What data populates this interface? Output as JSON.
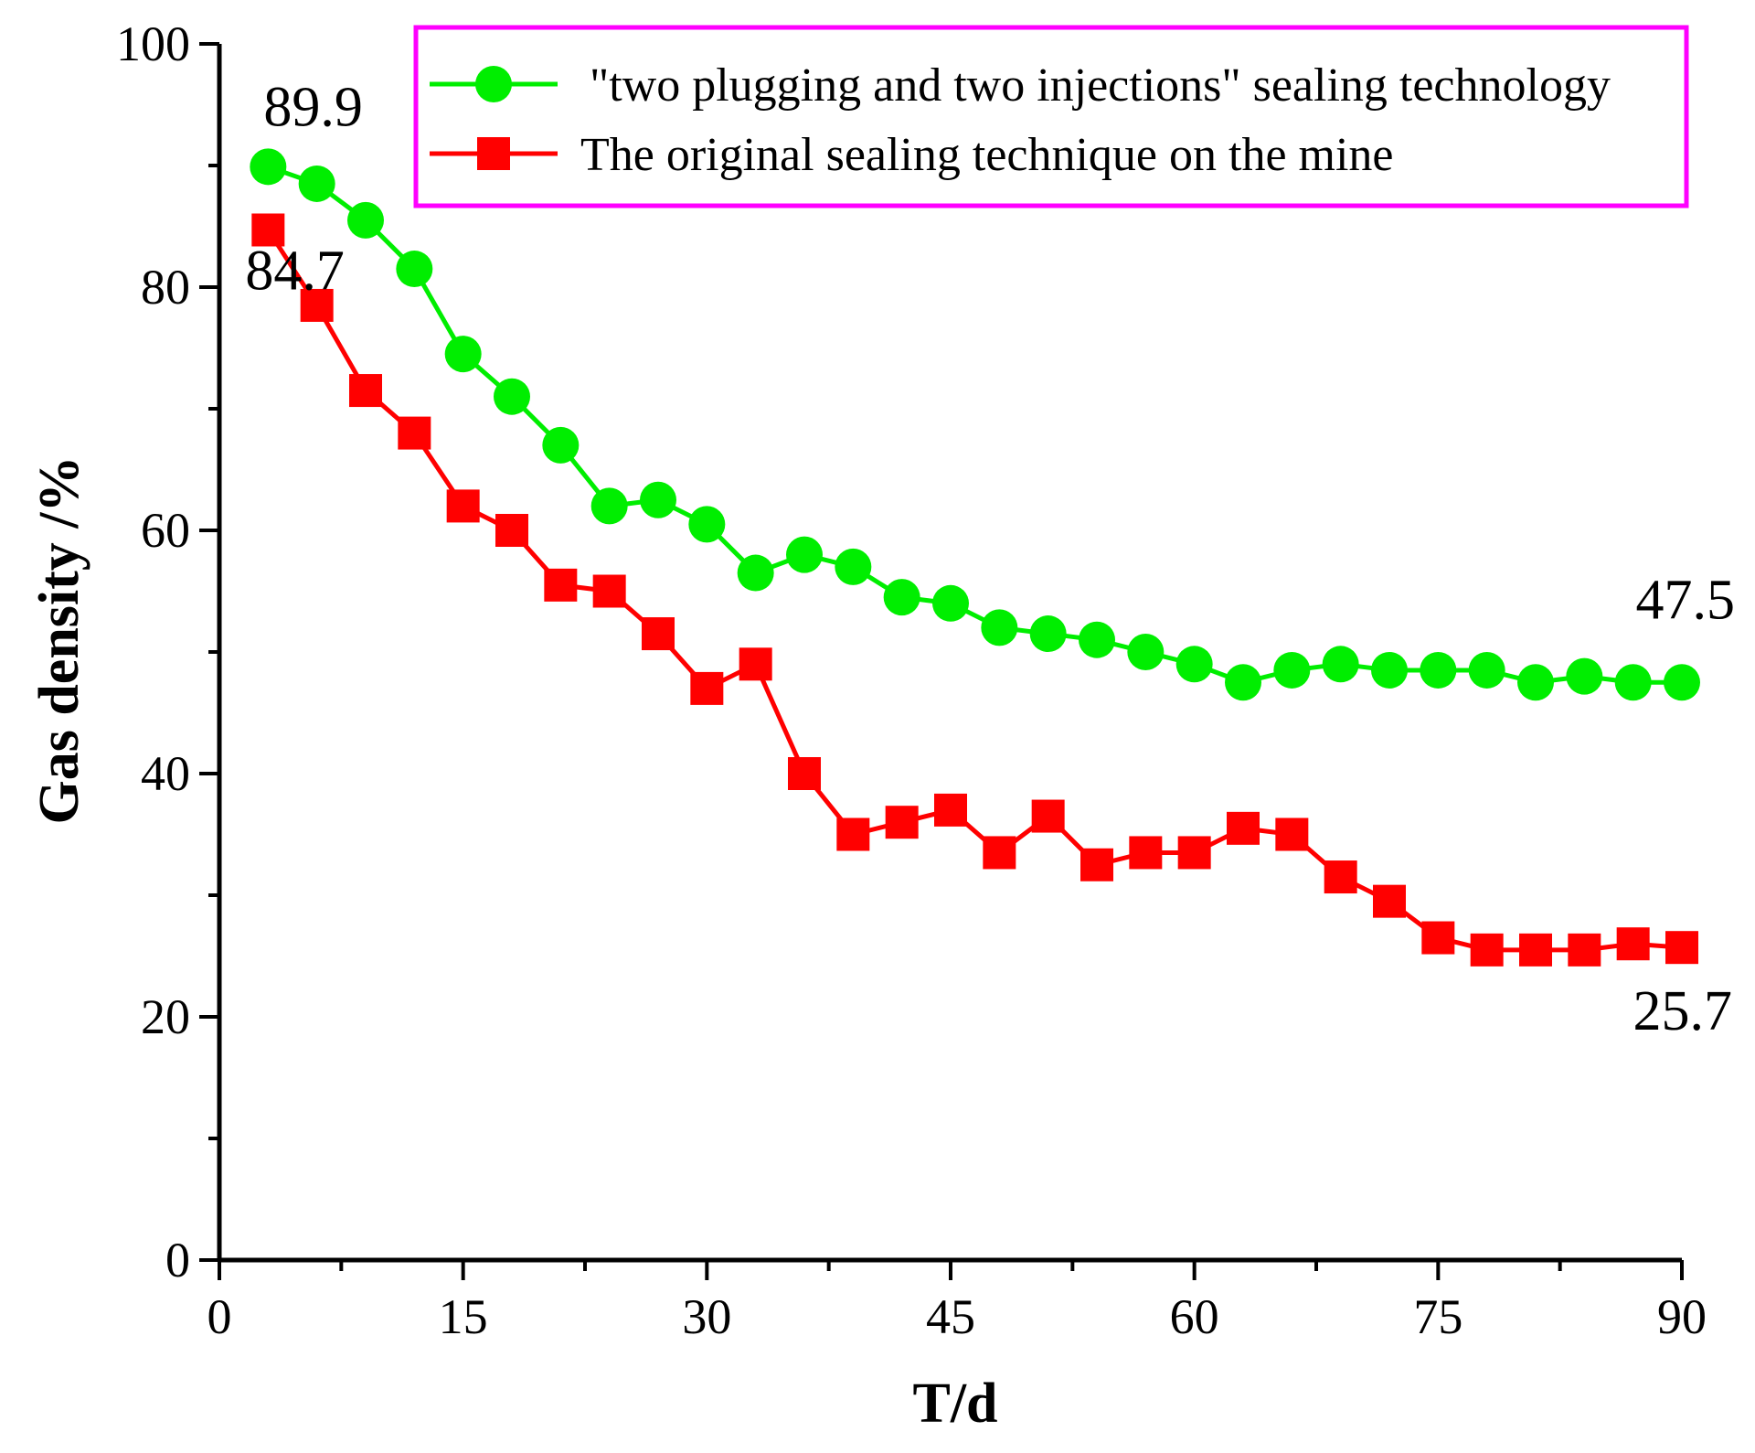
{
  "chart_data": {
    "type": "line",
    "title": "",
    "xlabel": "T/d",
    "ylabel": "Gas density /%",
    "xlim": [
      0,
      90
    ],
    "ylim": [
      0,
      100
    ],
    "x_ticks": [
      0,
      15,
      30,
      45,
      60,
      75,
      90
    ],
    "y_ticks": [
      0,
      20,
      40,
      60,
      80,
      100
    ],
    "legend_position": "top-right",
    "series": [
      {
        "name": "\"two plugging and two injections\" sealing technology",
        "color": "#00ee00",
        "marker": "circle",
        "x": [
          3,
          6,
          9,
          12,
          15,
          18,
          21,
          24,
          27,
          30,
          33,
          36,
          39,
          42,
          45,
          48,
          51,
          54,
          57,
          60,
          63,
          66,
          69,
          72,
          75,
          78,
          81,
          84,
          87,
          90
        ],
        "values": [
          89.9,
          88.5,
          85.5,
          81.5,
          74.5,
          71,
          67,
          62,
          62.5,
          60.5,
          56.5,
          58,
          57,
          54.5,
          54,
          52,
          51.5,
          51,
          50,
          49,
          47.5,
          48.5,
          49,
          48.5,
          48.5,
          48.5,
          47.5,
          48,
          47.5,
          47.5
        ]
      },
      {
        "name": "The original sealing technique on the mine",
        "color": "#ff0000",
        "marker": "square",
        "x": [
          3,
          6,
          9,
          12,
          15,
          18,
          21,
          24,
          27,
          30,
          33,
          36,
          39,
          42,
          45,
          48,
          51,
          54,
          57,
          60,
          63,
          66,
          69,
          72,
          75,
          78,
          81,
          84,
          87,
          90
        ],
        "values": [
          84.7,
          78.5,
          71.5,
          68,
          62,
          60,
          55.5,
          55,
          51.5,
          47,
          49,
          40,
          35,
          36,
          37,
          33.5,
          36.5,
          32.5,
          33.5,
          33.5,
          35.5,
          35,
          31.5,
          29.5,
          26.5,
          25.5,
          25.5,
          25.5,
          26,
          25.7
        ]
      }
    ],
    "annotations": [
      {
        "text": "89.9",
        "x": 3,
        "y": 89.9
      },
      {
        "text": "84.7",
        "x": 3,
        "y": 84.7
      },
      {
        "text": "47.5",
        "x": 90,
        "y": 47.5
      },
      {
        "text": "25.7",
        "x": 90,
        "y": 25.7
      }
    ]
  }
}
